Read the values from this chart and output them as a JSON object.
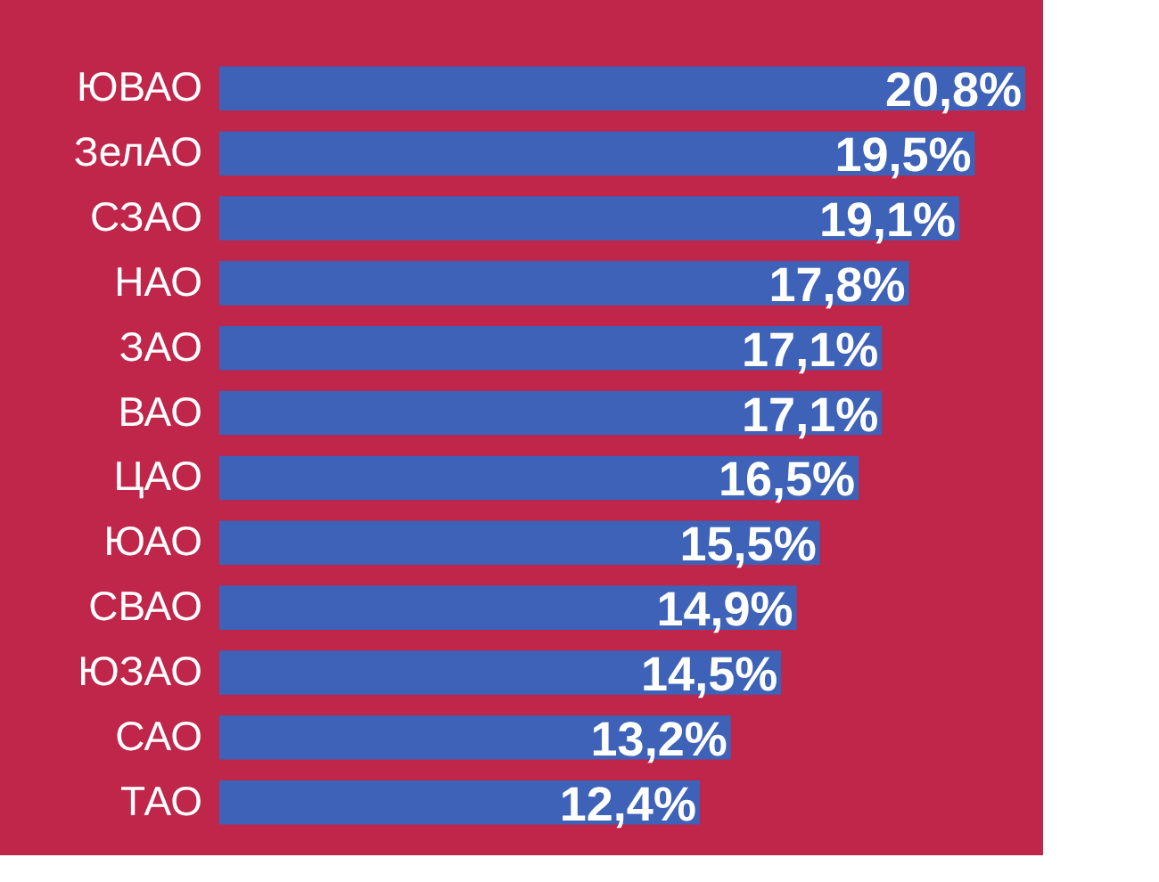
{
  "chart_data": {
    "type": "bar",
    "orientation": "horizontal",
    "color": "#3d62b8",
    "categories": [
      "ЮВАО",
      "ЗелАО",
      "СЗАО",
      "НАО",
      "ЗАО",
      "ВАО",
      "ЦАО",
      "ЮАО",
      "СВАО",
      "ЮЗАО",
      "САО",
      "ТАО"
    ],
    "values": [
      20.8,
      19.5,
      19.1,
      17.8,
      17.1,
      17.1,
      16.5,
      15.5,
      14.9,
      14.5,
      13.2,
      12.4
    ],
    "value_labels": [
      "20,8%",
      "19,5%",
      "19,1%",
      "17,8%",
      "17,1%",
      "17,1%",
      "16,5%",
      "15,5%",
      "14,9%",
      "14,5%",
      "13,2%",
      "12,4%"
    ],
    "data_labels": true
  }
}
